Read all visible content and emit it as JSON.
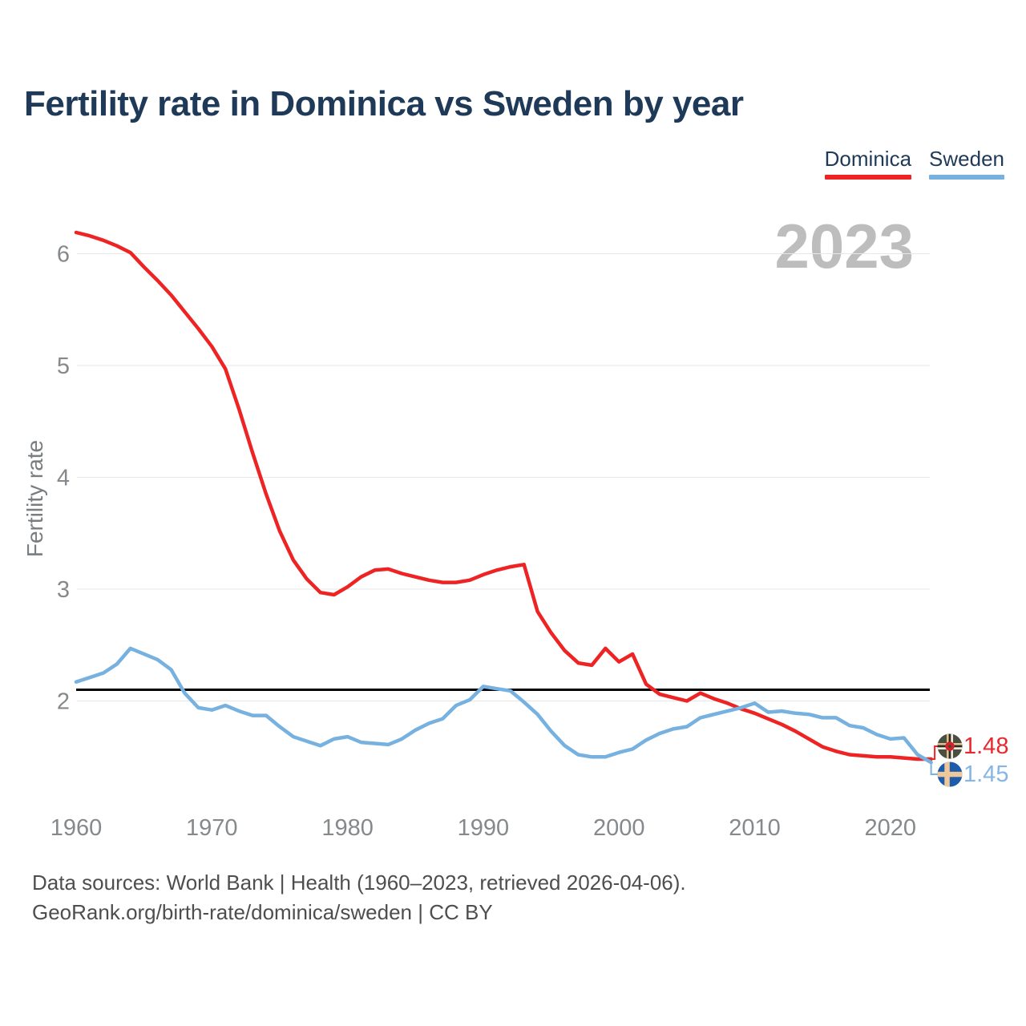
{
  "title": "Fertility rate in Dominica vs Sweden by year",
  "legend": [
    {
      "label": "Dominica",
      "color": "#ee2424"
    },
    {
      "label": "Sweden",
      "color": "#76b1e0"
    }
  ],
  "watermark": "2023",
  "end_labels": [
    {
      "series": "Dominica",
      "value": "1.48",
      "color": "#e8282e",
      "icon": "dominica-flag-icon"
    },
    {
      "series": "Sweden",
      "value": "1.45",
      "color": "#85b6e6",
      "icon": "sweden-flag-icon"
    }
  ],
  "footer": {
    "line1": "Data sources: World Bank | Health (1960–2023, retrieved 2026-04-06).",
    "line2": "GeoRank.org/birth-rate/dominica/sweden | CC BY"
  },
  "chart_data": {
    "type": "line",
    "title": "Fertility rate in Dominica vs Sweden by year",
    "xlabel": "",
    "ylabel": "Fertility rate",
    "grid": true,
    "legend_position": "top-right",
    "xlim": [
      1960,
      2023
    ],
    "ylim": [
      1.25,
      6.3
    ],
    "x_ticks": [
      1960,
      1970,
      1980,
      1990,
      2000,
      2010,
      2020
    ],
    "y_ticks": [
      6,
      5,
      4,
      3,
      2
    ],
    "reference_line": {
      "value": 2.1,
      "color": "#000000"
    },
    "x": [
      1960,
      1961,
      1962,
      1963,
      1964,
      1965,
      1966,
      1967,
      1968,
      1969,
      1970,
      1971,
      1972,
      1973,
      1974,
      1975,
      1976,
      1977,
      1978,
      1979,
      1980,
      1981,
      1982,
      1983,
      1984,
      1985,
      1986,
      1987,
      1988,
      1989,
      1990,
      1991,
      1992,
      1993,
      1994,
      1995,
      1996,
      1997,
      1998,
      1999,
      2000,
      2001,
      2002,
      2003,
      2004,
      2005,
      2006,
      2007,
      2008,
      2009,
      2010,
      2011,
      2012,
      2013,
      2014,
      2015,
      2016,
      2017,
      2018,
      2019,
      2020,
      2021,
      2022,
      2023
    ],
    "series": [
      {
        "name": "Dominica",
        "color": "#ee2424",
        "values": [
          6.19,
          6.16,
          6.12,
          6.07,
          6.01,
          5.88,
          5.76,
          5.63,
          5.48,
          5.33,
          5.17,
          4.97,
          4.61,
          4.22,
          3.85,
          3.52,
          3.26,
          3.09,
          2.97,
          2.95,
          3.02,
          3.11,
          3.17,
          3.18,
          3.14,
          3.11,
          3.08,
          3.06,
          3.06,
          3.08,
          3.13,
          3.17,
          3.2,
          3.22,
          2.8,
          2.61,
          2.45,
          2.34,
          2.32,
          2.47,
          2.35,
          2.42,
          2.15,
          2.06,
          2.03,
          2.0,
          2.07,
          2.02,
          1.98,
          1.93,
          1.89,
          1.84,
          1.79,
          1.73,
          1.66,
          1.59,
          1.55,
          1.52,
          1.51,
          1.5,
          1.5,
          1.49,
          1.48,
          1.48
        ]
      },
      {
        "name": "Sweden",
        "color": "#76b1e0",
        "values": [
          2.17,
          2.21,
          2.25,
          2.33,
          2.47,
          2.42,
          2.37,
          2.28,
          2.07,
          1.94,
          1.92,
          1.96,
          1.91,
          1.87,
          1.87,
          1.77,
          1.68,
          1.64,
          1.6,
          1.66,
          1.68,
          1.63,
          1.62,
          1.61,
          1.66,
          1.74,
          1.8,
          1.84,
          1.96,
          2.01,
          2.13,
          2.11,
          2.09,
          1.99,
          1.88,
          1.73,
          1.6,
          1.52,
          1.5,
          1.5,
          1.54,
          1.57,
          1.65,
          1.71,
          1.75,
          1.77,
          1.85,
          1.88,
          1.91,
          1.94,
          1.98,
          1.9,
          1.91,
          1.89,
          1.88,
          1.85,
          1.85,
          1.78,
          1.76,
          1.7,
          1.66,
          1.67,
          1.52,
          1.45
        ]
      }
    ]
  }
}
